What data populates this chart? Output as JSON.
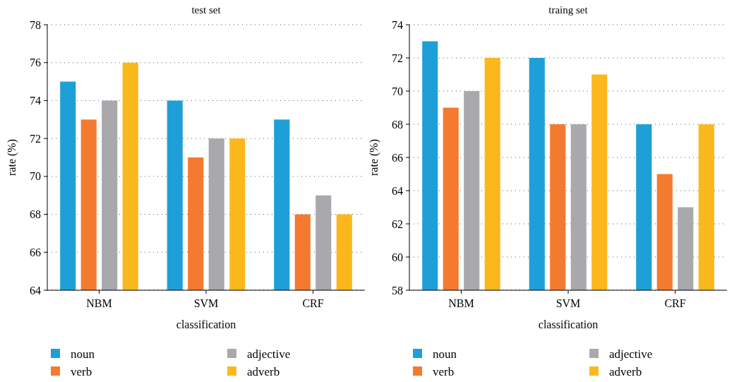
{
  "chart_data": [
    {
      "type": "bar",
      "title": "test set",
      "xlabel": "classification",
      "ylabel": "rate (%)",
      "categories": [
        "NBM",
        "SVM",
        "CRF"
      ],
      "series": [
        {
          "name": "noun",
          "color": "#1f9fd8",
          "values": [
            75,
            74,
            73
          ]
        },
        {
          "name": "verb",
          "color": "#f47a30",
          "values": [
            73,
            71,
            68
          ]
        },
        {
          "name": "adjective",
          "color": "#a9a9ad",
          "values": [
            74,
            72,
            69
          ]
        },
        {
          "name": "adverb",
          "color": "#fbb81c",
          "values": [
            76,
            72,
            68
          ]
        }
      ],
      "ylim": [
        64,
        78
      ],
      "yticks": [
        64,
        66,
        68,
        70,
        72,
        74,
        76,
        78
      ],
      "grid": "y",
      "legend": "bottom"
    },
    {
      "type": "bar",
      "title": "traing set",
      "xlabel": "classification",
      "ylabel": "rate (%)",
      "categories": [
        "NBM",
        "SVM",
        "CRF"
      ],
      "series": [
        {
          "name": "noun",
          "color": "#1f9fd8",
          "values": [
            73,
            72,
            68
          ]
        },
        {
          "name": "verb",
          "color": "#f47a30",
          "values": [
            69,
            68,
            65
          ]
        },
        {
          "name": "adjective",
          "color": "#a9a9ad",
          "values": [
            70,
            68,
            63
          ]
        },
        {
          "name": "adverb",
          "color": "#fbb81c",
          "values": [
            72,
            71,
            68
          ]
        }
      ],
      "ylim": [
        58,
        74
      ],
      "yticks": [
        58,
        60,
        62,
        64,
        66,
        68,
        70,
        72,
        74
      ],
      "grid": "y",
      "legend": "bottom"
    }
  ]
}
